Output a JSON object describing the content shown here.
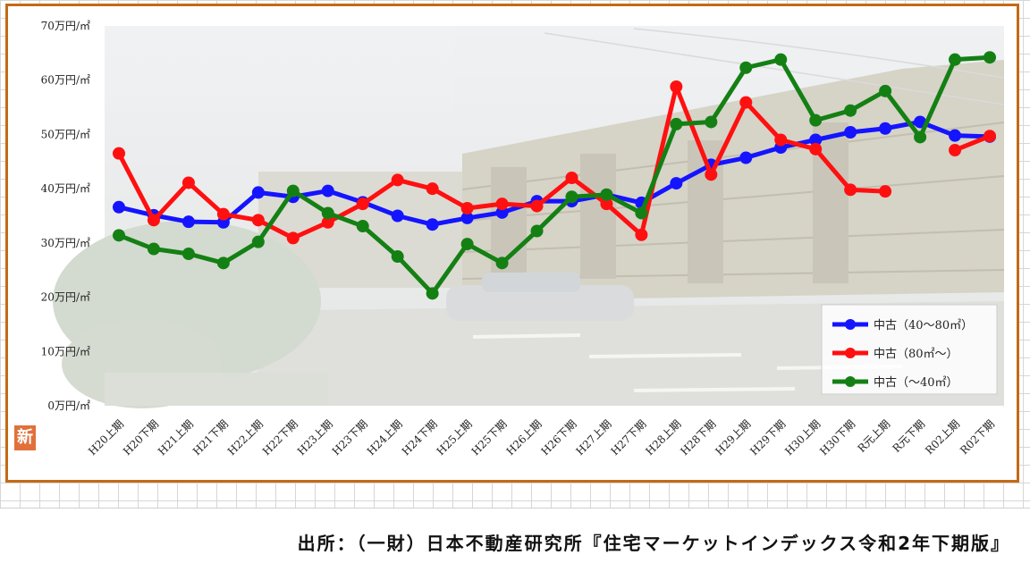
{
  "source_note": "出所：（一財）日本不動産研究所『住宅マーケットインデックス令和2年下期版』",
  "badge_text": "新",
  "chart_data": {
    "type": "line",
    "title": "",
    "xlabel": "",
    "ylabel": "",
    "ylim": [
      0,
      70
    ],
    "y_ticks": [
      0,
      10,
      20,
      30,
      40,
      50,
      60,
      70
    ],
    "y_tick_labels": [
      "0万円/㎡",
      "10万円/㎡",
      "20万円/㎡",
      "30万円/㎡",
      "40万円/㎡",
      "50万円/㎡",
      "60万円/㎡",
      "70万円/㎡"
    ],
    "categories": [
      "H20上期",
      "H20下期",
      "H21上期",
      "H21下期",
      "H22上期",
      "H22下期",
      "H23上期",
      "H23下期",
      "H24上期",
      "H24下期",
      "H25上期",
      "H25下期",
      "H26上期",
      "H26下期",
      "H27上期",
      "H27下期",
      "H28上期",
      "H28下期",
      "H29上期",
      "H29下期",
      "H30上期",
      "H30下期",
      "R元上期",
      "R元下期",
      "R02上期",
      "R02下期"
    ],
    "legend_position": "bottom-right",
    "grid": false,
    "series": [
      {
        "name": "中古（40～80㎡）",
        "color": "#1414ff",
        "values": [
          36.6,
          35.1,
          33.9,
          33.8,
          39.3,
          38.5,
          39.6,
          37.5,
          35.0,
          33.4,
          34.6,
          35.6,
          37.7,
          37.7,
          38.9,
          37.4,
          41.0,
          44.4,
          45.7,
          47.6,
          49.0,
          50.4,
          51.1,
          52.3,
          49.8,
          49.6
        ]
      },
      {
        "name": "中古（80㎡～）",
        "color": "#ff1010",
        "values": [
          46.5,
          34.2,
          41.1,
          35.3,
          34.2,
          30.9,
          33.8,
          37.2,
          41.6,
          40.0,
          36.4,
          37.2,
          36.8,
          42.0,
          37.2,
          31.5,
          58.8,
          42.6,
          55.9,
          49.0,
          47.3,
          39.8,
          39.5,
          null,
          47.1,
          49.7
        ]
      },
      {
        "name": "中古（～40㎡）",
        "color": "#148014",
        "values": [
          31.4,
          28.9,
          28.0,
          26.3,
          30.2,
          39.6,
          35.5,
          33.1,
          27.5,
          20.7,
          29.8,
          26.3,
          32.2,
          38.5,
          38.9,
          35.5,
          51.9,
          52.3,
          62.3,
          63.8,
          52.6,
          54.4,
          58.0,
          49.5,
          63.8,
          64.2
        ]
      }
    ]
  }
}
